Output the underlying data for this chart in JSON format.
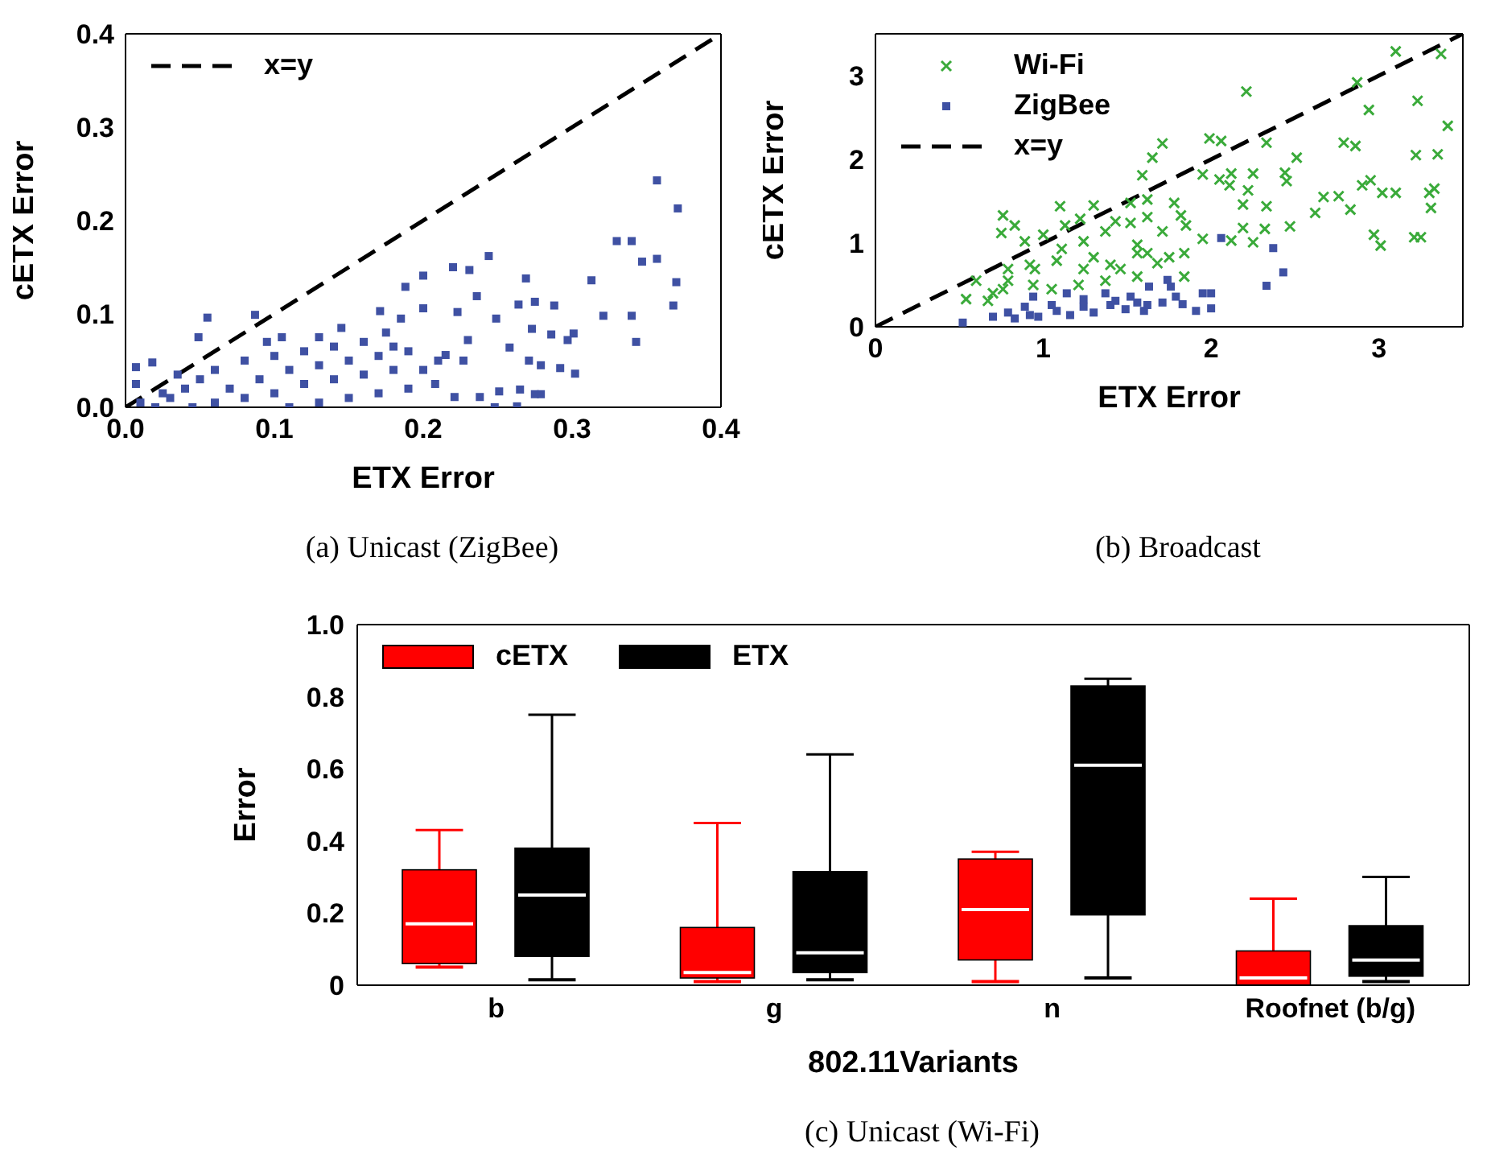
{
  "chart_data": [
    {
      "type": "scatter",
      "title": "(a) Unicast (ZigBee)",
      "xlabel": "ETX Error",
      "ylabel": "cETX Error",
      "xlim": [
        0,
        0.4
      ],
      "ylim": [
        0,
        0.4
      ],
      "xticks": [
        {
          "value": 0,
          "label": "0.0"
        },
        0.1,
        0.2,
        0.3,
        0.4
      ],
      "yticks": [
        {
          "value": 0,
          "label": "0.0"
        },
        0.1,
        0.2,
        0.3,
        0.4
      ],
      "legend": "top left",
      "series": [
        {
          "type": "scatter",
          "color": "#3f51a3",
          "marker": "square",
          "x": [
            0.357,
            0.371,
            0.33,
            0.34,
            0.347,
            0.357,
            0.37,
            0.368,
            0.313,
            0.321,
            0.34,
            0.343,
            0.301,
            0.302,
            0.244,
            0.22,
            0.231,
            0.2,
            0.269,
            0.188,
            0.236,
            0.264,
            0.275,
            0.288,
            0.087,
            0.055,
            0.049,
            0.018,
            0.007,
            0.007,
            0.171,
            0.2,
            0.223,
            0.249,
            0.273,
            0.286,
            0.297,
            0.258,
            0.271,
            0.279,
            0.292,
            0.265,
            0.275,
            0.279,
            0.248,
            0.263,
            0.251,
            0.238,
            0.221,
            0.208,
            0.227,
            0.23,
            0.215,
            0.03,
            0.04,
            0.05,
            0.06,
            0.06,
            0.07,
            0.08,
            0.08,
            0.09,
            0.1,
            0.1,
            0.11,
            0.11,
            0.12,
            0.12,
            0.13,
            0.13,
            0.14,
            0.14,
            0.15,
            0.15,
            0.16,
            0.16,
            0.17,
            0.17,
            0.18,
            0.18,
            0.19,
            0.19,
            0.2,
            0.21,
            0.035,
            0.045,
            0.095,
            0.105,
            0.13,
            0.145,
            0.175,
            0.185,
            0.01,
            0.02,
            0.025
          ],
          "values": [
            0.243,
            0.213,
            0.178,
            0.178,
            0.156,
            0.159,
            0.134,
            0.109,
            0.136,
            0.098,
            0.098,
            0.07,
            0.079,
            0.036,
            0.162,
            0.15,
            0.147,
            0.141,
            0.138,
            0.129,
            0.119,
            0.11,
            0.113,
            0.109,
            0.099,
            0.096,
            0.075,
            0.048,
            0.043,
            0.025,
            0.103,
            0.106,
            0.102,
            0.095,
            0.084,
            0.078,
            0.072,
            0.064,
            0.05,
            0.045,
            0.042,
            0.019,
            0.014,
            0.014,
            0,
            0.001,
            0.017,
            0.011,
            0.011,
            0.025,
            0.05,
            0.072,
            0.056,
            0.01,
            0.02,
            0.03,
            0.005,
            0.04,
            0.02,
            0.05,
            0.01,
            0.03,
            0.055,
            0.015,
            0.04,
            0,
            0.06,
            0.025,
            0.045,
            0.005,
            0.065,
            0.03,
            0.05,
            0.01,
            0.07,
            0.035,
            0.055,
            0.015,
            0.065,
            0.04,
            0.02,
            0.06,
            0.04,
            0.05,
            0.035,
            0,
            0.07,
            0.075,
            0.075,
            0.085,
            0.08,
            0.095,
            0.005,
            0,
            0.015
          ]
        },
        {
          "type": "line",
          "name": "x=y",
          "color": "#000000",
          "marker": "none",
          "line_style": "dashed",
          "x": [
            0,
            0.4
          ],
          "values": [
            0,
            0.4
          ]
        }
      ]
    },
    {
      "type": "scatter",
      "title": "(b) Broadcast",
      "xlabel": "ETX Error",
      "ylabel": "cETX Error",
      "xlim": [
        0,
        3.5
      ],
      "ylim": [
        0,
        3.5
      ],
      "xticks": [
        0,
        1,
        2,
        3
      ],
      "yticks": [
        0,
        1,
        2,
        3
      ],
      "legend": "top left",
      "series": [
        {
          "type": "scatter",
          "name": "Wi-Fi",
          "color": "#3aaa3a",
          "marker": "cross",
          "x": [
            3.1,
            3.37,
            2.21,
            2.87,
            2.94,
            3.23,
            3.41,
            1.99,
            2.06,
            1.71,
            1.65,
            1.59,
            2.33,
            2.51,
            2.79,
            2.86,
            3.22,
            3.35,
            1.95,
            2.05,
            2.12,
            2.25,
            2.44,
            2.45,
            2.11,
            2.22,
            2.95,
            2.9,
            2.67,
            2.76,
            3.02,
            3.1,
            3.3,
            3.33,
            3.31,
            2.62,
            2.83,
            2.33,
            2.19,
            2.19,
            2.47,
            2.32,
            2.97,
            3.01,
            3.21,
            3.25,
            2.25,
            2.12,
            1.95,
            1.85,
            1.82,
            1.78,
            1.62,
            1.52,
            1.3,
            1.1,
            0.76,
            0.83,
            0.75,
            0.89,
            1.0,
            1.13,
            1.22,
            1.43,
            1.52,
            1.37,
            1.62,
            1.71,
            1.56,
            1.56,
            1.84,
            1.75,
            1.3,
            1.11,
            1.08,
            0.95,
            0.79,
            0.79,
            0.92,
            1.46,
            1.4,
            1.24,
            1.56,
            1.84,
            1.21,
            1.05,
            0.94,
            0.7,
            0.6,
            0.54,
            0.67,
            0.76,
            1.37,
            1.68,
            1.24,
            1.62
          ],
          "values": [
            3.29,
            3.26,
            2.81,
            2.92,
            2.59,
            2.7,
            2.4,
            2.25,
            2.22,
            2.19,
            2.02,
            1.81,
            2.2,
            2.02,
            2.2,
            2.16,
            2.05,
            2.06,
            1.82,
            1.76,
            1.83,
            1.83,
            1.84,
            1.74,
            1.69,
            1.63,
            1.75,
            1.69,
            1.55,
            1.56,
            1.6,
            1.6,
            1.6,
            1.65,
            1.42,
            1.36,
            1.4,
            1.44,
            1.46,
            1.18,
            1.2,
            1.17,
            1.1,
            0.97,
            1.07,
            1.07,
            1.01,
            1.03,
            1.05,
            1.21,
            1.33,
            1.48,
            1.52,
            1.48,
            1.45,
            1.44,
            1.33,
            1.21,
            1.12,
            1.02,
            1.1,
            1.21,
            1.29,
            1.26,
            1.24,
            1.14,
            1.31,
            1.14,
            0.98,
            0.88,
            0.88,
            0.83,
            0.83,
            0.93,
            0.79,
            0.69,
            0.69,
            0.55,
            0.74,
            0.69,
            0.74,
            0.69,
            0.6,
            0.6,
            0.5,
            0.45,
            0.5,
            0.4,
            0.55,
            0.33,
            0.31,
            0.45,
            0.55,
            0.76,
            1.02,
            0.88
          ]
        },
        {
          "type": "scatter",
          "name": "ZigBee",
          "color": "#3f51a3",
          "marker": "square",
          "x": [
            0.52,
            2.06,
            2.37,
            2.43,
            2.33,
            2.0,
            1.95,
            2.0,
            1.91,
            1.83,
            1.79,
            1.74,
            1.76,
            1.63,
            1.71,
            1.6,
            1.52,
            1.43,
            1.37,
            1.14,
            0.94,
            0.7,
            0.79,
            0.92,
            1.08,
            1.24,
            1.4,
            1.49,
            1.56,
            1.3,
            1.16,
            0.97,
            0.83,
            1.05,
            1.24,
            0.89,
            1.62
          ],
          "values": [
            0.05,
            1.06,
            0.94,
            0.65,
            0.49,
            0.4,
            0.4,
            0.22,
            0.19,
            0.27,
            0.36,
            0.56,
            0.48,
            0.48,
            0.29,
            0.19,
            0.36,
            0.31,
            0.4,
            0.4,
            0.36,
            0.12,
            0.17,
            0.14,
            0.19,
            0.24,
            0.26,
            0.21,
            0.29,
            0.17,
            0.14,
            0.12,
            0.1,
            0.26,
            0.33,
            0.24,
            0.26
          ]
        },
        {
          "type": "line",
          "name": "x=y",
          "color": "#000000",
          "marker": "none",
          "line_style": "dashed",
          "x": [
            0,
            3.5
          ],
          "values": [
            0,
            3.5
          ]
        }
      ]
    },
    {
      "type": "box",
      "title": "(c) Unicast (Wi-Fi)",
      "xlabel": "802.11Variants",
      "ylabel": "Error",
      "categories": [
        "b",
        "g",
        "n",
        "Roofnet (b/g)"
      ],
      "ylim": [
        0,
        1
      ],
      "yticks": [
        0,
        0.2,
        0.4,
        0.6,
        0.8,
        {
          "value": 1,
          "label": "1.0"
        }
      ],
      "legend": "top left",
      "series": [
        {
          "name": "cETX",
          "color": "#ff0000",
          "boxes": [
            {
              "low": 0.05,
              "q1": 0.06,
              "median": 0.17,
              "q3": 0.32,
              "high": 0.43
            },
            {
              "low": 0.01,
              "q1": 0.02,
              "median": 0.035,
              "q3": 0.16,
              "high": 0.45
            },
            {
              "low": 0.01,
              "q1": 0.07,
              "median": 0.21,
              "q3": 0.35,
              "high": 0.37
            },
            {
              "low": 0,
              "q1": 0,
              "median": 0.02,
              "q3": 0.095,
              "high": 0.24
            }
          ]
        },
        {
          "name": "ETX",
          "color": "#000000",
          "boxes": [
            {
              "low": 0.015,
              "q1": 0.08,
              "median": 0.25,
              "q3": 0.38,
              "high": 0.75
            },
            {
              "low": 0.015,
              "q1": 0.035,
              "median": 0.09,
              "q3": 0.315,
              "high": 0.64
            },
            {
              "low": 0.02,
              "q1": 0.195,
              "median": 0.61,
              "q3": 0.83,
              "high": 0.85
            },
            {
              "low": 0.01,
              "q1": 0.025,
              "median": 0.07,
              "q3": 0.165,
              "high": 0.3
            }
          ]
        }
      ]
    }
  ]
}
